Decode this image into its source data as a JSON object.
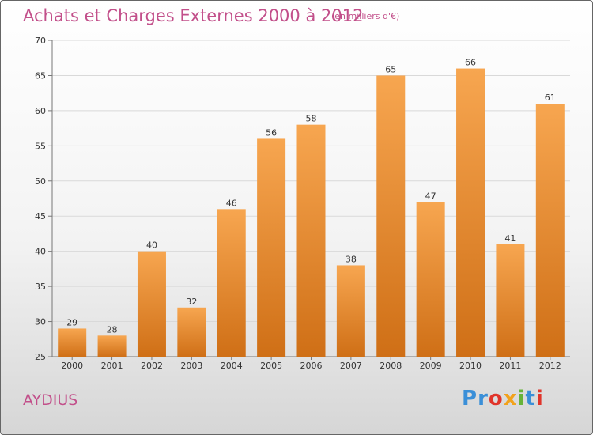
{
  "header": {
    "title": "Achats et Charges Externes 2000 à 2012",
    "unit": "(en milliers d'€)"
  },
  "footer": {
    "commune": "AYDIUS",
    "logo_letters": [
      "P",
      "r",
      "o",
      "x",
      "i",
      "t",
      "i"
    ],
    "logo_colors": [
      "#3a8fd8",
      "#3a8fd8",
      "#e0342a",
      "#f2a21b",
      "#67b338",
      "#3a8fd8",
      "#e0342a"
    ]
  },
  "colors": {
    "bar_top": "#f7a650",
    "bar_bottom": "#cf6f16",
    "title": "#c24f8a"
  },
  "chart_data": {
    "type": "bar",
    "categories": [
      "2000",
      "2001",
      "2002",
      "2003",
      "2004",
      "2005",
      "2006",
      "2007",
      "2008",
      "2009",
      "2010",
      "2011",
      "2012"
    ],
    "values": [
      29,
      28,
      40,
      32,
      46,
      56,
      58,
      38,
      65,
      47,
      66,
      41,
      61
    ],
    "ylim": [
      25,
      70
    ],
    "yticks": [
      25,
      30,
      35,
      40,
      45,
      50,
      55,
      60,
      65,
      70
    ],
    "grid": true,
    "xlabel": "",
    "ylabel": ""
  }
}
